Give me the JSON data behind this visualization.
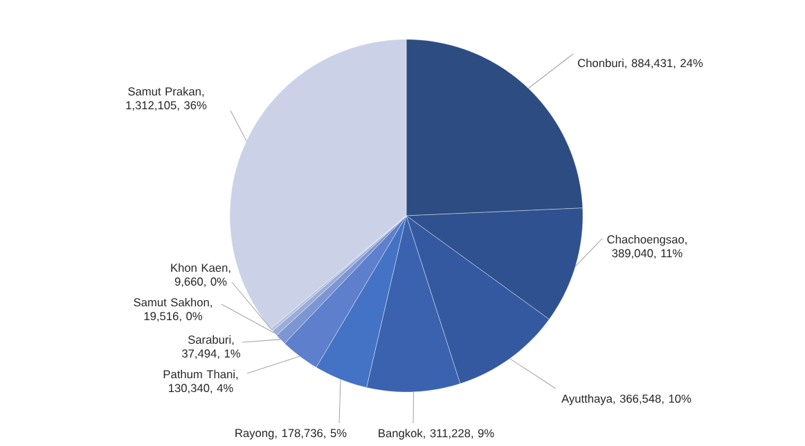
{
  "chart_data": {
    "type": "pie",
    "categories": [
      "Chonburi",
      "Chachoengsao",
      "Ayutthaya",
      "Bangkok",
      "Rayong",
      "Pathum Thani",
      "Saraburi",
      "Samut Sakhon",
      "Khon Kaen",
      "Samut Prakan"
    ],
    "values": [
      884431,
      389040,
      366548,
      311228,
      178736,
      130340,
      37494,
      19516,
      9660,
      1312105
    ],
    "value_labels": [
      ", 884,431, 24%",
      ", 389,040, 11%",
      ", 366,548, 10%",
      ", 311,228, 9%",
      ", 178,736, 5%",
      ", 130,340, 4%",
      ", 37,494, 1%",
      ", 19,516, 0%",
      ", 9,660, 0%",
      ", 1,312,105, 36%"
    ],
    "colors": [
      "#2c4c82",
      "#2f5190",
      "#3459a0",
      "#3a62ae",
      "#4472c4",
      "#5e7fcb",
      "#7d96d3",
      "#9aadd9",
      "#b5c2e2",
      "#cbd2e7"
    ]
  }
}
